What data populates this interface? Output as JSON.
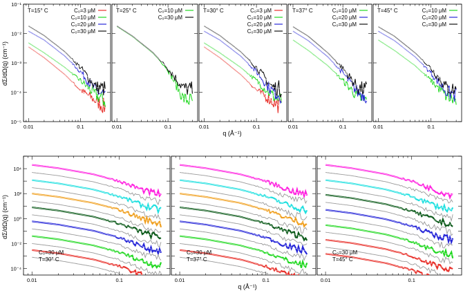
{
  "top_row": {
    "ylabel": "dΣ/dΩ(q) (cm⁻¹)",
    "xlabel": "q (Å⁻¹)"
  },
  "bottom_row": {
    "ylabel": "dΣ/dΩ(q) (cm⁻¹)",
    "xlabel": "q (Å⁻¹)"
  },
  "chart_data": [
    {
      "type": "line",
      "log_x": true,
      "log_y": true,
      "xlim": [
        0.008,
        0.38
      ],
      "ylim": [
        1e-05,
        0.1
      ],
      "x_ticks": [
        "0.01",
        "0.1"
      ],
      "y_ticks": [
        "10⁻⁵",
        "10⁻⁴",
        "10⁻³",
        "10⁻²",
        "10⁻¹"
      ],
      "temp": "T=15° C",
      "series": [
        {
          "name": "C₀=3 μM",
          "color": "#e8302a",
          "values": [
            [
              0.01,
              0.0035
            ],
            [
              0.02,
              0.0015
            ],
            [
              0.05,
              0.0004
            ],
            [
              0.1,
              0.00012
            ],
            [
              0.2,
              5e-05
            ],
            [
              0.3,
              3e-05
            ]
          ]
        },
        {
          "name": "C₀=10 μM",
          "color": "#22d822",
          "values": [
            [
              0.01,
              0.0048
            ],
            [
              0.02,
              0.0022
            ],
            [
              0.05,
              0.0007
            ],
            [
              0.1,
              0.00025
            ],
            [
              0.2,
              8e-05
            ],
            [
              0.3,
              5e-05
            ]
          ]
        },
        {
          "name": "C₀=20 μM",
          "color": "#2828d8",
          "values": [
            [
              0.01,
              0.012
            ],
            [
              0.02,
              0.006
            ],
            [
              0.05,
              0.0017
            ],
            [
              0.1,
              0.0005
            ],
            [
              0.2,
              0.00011
            ],
            [
              0.3,
              8e-05
            ]
          ]
        },
        {
          "name": "C₀=30 μM",
          "color": "#111111",
          "values": [
            [
              0.01,
              0.018
            ],
            [
              0.02,
              0.0085
            ],
            [
              0.05,
              0.0024
            ],
            [
              0.1,
              0.0007
            ],
            [
              0.2,
              0.00015
            ],
            [
              0.3,
              0.00013
            ]
          ]
        }
      ]
    },
    {
      "type": "line",
      "log_x": true,
      "log_y": true,
      "xlim": [
        0.008,
        0.38
      ],
      "ylim": [
        1e-05,
        0.1
      ],
      "x_ticks": [
        "0.01",
        "0.1"
      ],
      "temp": "T=25° C",
      "series": [
        {
          "name": "C₀=10 μM",
          "color": "#22d822",
          "values": [
            [
              0.01,
              0.0175
            ],
            [
              0.02,
              0.008
            ],
            [
              0.05,
              0.0022
            ],
            [
              0.1,
              0.0006
            ],
            [
              0.2,
              6e-05
            ],
            [
              0.3,
              5e-05
            ]
          ]
        },
        {
          "name": "C₀=30 μM",
          "color": "#111111",
          "values": [
            [
              0.01,
              0.018
            ],
            [
              0.02,
              0.0083
            ],
            [
              0.05,
              0.0023
            ],
            [
              0.1,
              0.00065
            ],
            [
              0.2,
              0.00014
            ],
            [
              0.3,
              0.00012
            ]
          ]
        }
      ]
    },
    {
      "type": "line",
      "log_x": true,
      "log_y": true,
      "xlim": [
        0.008,
        0.38
      ],
      "ylim": [
        1e-05,
        0.1
      ],
      "x_ticks": [
        "0.01",
        "0.1"
      ],
      "temp": "T=30° C",
      "series": [
        {
          "name": "C₀=3 μM",
          "color": "#e8302a",
          "values": [
            [
              0.01,
              0.0035
            ],
            [
              0.02,
              0.0015
            ],
            [
              0.05,
              0.0004
            ],
            [
              0.1,
              0.00012
            ],
            [
              0.2,
              5e-05
            ],
            [
              0.3,
              3e-05
            ]
          ]
        },
        {
          "name": "C₀=10 μM",
          "color": "#22d822",
          "values": [
            [
              0.01,
              0.0048
            ],
            [
              0.02,
              0.0022
            ],
            [
              0.05,
              0.0007
            ],
            [
              0.1,
              0.00025
            ],
            [
              0.2,
              8e-05
            ],
            [
              0.3,
              5e-05
            ]
          ]
        },
        {
          "name": "C₀=20 μM",
          "color": "#2828d8",
          "values": [
            [
              0.01,
              0.012
            ],
            [
              0.02,
              0.006
            ],
            [
              0.05,
              0.0017
            ],
            [
              0.1,
              0.0005
            ],
            [
              0.2,
              0.00011
            ],
            [
              0.3,
              8e-05
            ]
          ]
        },
        {
          "name": "C₀=30 μM",
          "color": "#111111",
          "values": [
            [
              0.01,
              0.018
            ],
            [
              0.02,
              0.0085
            ],
            [
              0.05,
              0.0024
            ],
            [
              0.1,
              0.0007
            ],
            [
              0.2,
              0.00015
            ],
            [
              0.3,
              0.00013
            ]
          ]
        }
      ]
    },
    {
      "type": "line",
      "log_x": true,
      "log_y": true,
      "xlim": [
        0.008,
        0.38
      ],
      "ylim": [
        1e-05,
        0.1
      ],
      "x_ticks": [
        "0.01",
        "0.1"
      ],
      "temp": "T=37° C",
      "series": [
        {
          "name": "C₀=10 μM",
          "color": "#22d822",
          "values": [
            [
              0.01,
              0.006
            ],
            [
              0.02,
              0.0027
            ],
            [
              0.05,
              0.0008
            ],
            [
              0.1,
              0.00025
            ],
            [
              0.2,
              7e-05
            ],
            [
              0.3,
              5e-05
            ]
          ]
        },
        {
          "name": "C₀=20 μM",
          "color": "#2828d8",
          "values": [
            [
              0.01,
              0.012
            ],
            [
              0.02,
              0.0058
            ],
            [
              0.05,
              0.0016
            ],
            [
              0.1,
              0.00045
            ],
            [
              0.2,
              0.0001
            ],
            [
              0.3,
              8e-05
            ]
          ]
        },
        {
          "name": "C₀=30 μM",
          "color": "#111111",
          "values": [
            [
              0.01,
              0.017
            ],
            [
              0.02,
              0.0082
            ],
            [
              0.05,
              0.0022
            ],
            [
              0.1,
              0.00065
            ],
            [
              0.2,
              0.00014
            ],
            [
              0.3,
              0.00012
            ]
          ]
        }
      ]
    },
    {
      "type": "line",
      "log_x": true,
      "log_y": true,
      "xlim": [
        0.008,
        0.38
      ],
      "ylim": [
        1e-05,
        0.1
      ],
      "x_ticks": [
        "0.01",
        "0.1"
      ],
      "temp": "T=45° C",
      "series": [
        {
          "name": "C₀=10 μM",
          "color": "#22d822",
          "values": [
            [
              0.01,
              0.006
            ],
            [
              0.02,
              0.0027
            ],
            [
              0.05,
              0.0008
            ],
            [
              0.1,
              0.00025
            ],
            [
              0.2,
              7e-05
            ],
            [
              0.3,
              5e-05
            ]
          ]
        },
        {
          "name": "C₀=20 μM",
          "color": "#2828d8",
          "values": [
            [
              0.01,
              0.012
            ],
            [
              0.02,
              0.0058
            ],
            [
              0.05,
              0.0016
            ],
            [
              0.1,
              0.00045
            ],
            [
              0.2,
              0.0001
            ],
            [
              0.3,
              8e-05
            ]
          ]
        },
        {
          "name": "C₀=30 μM",
          "color": "#111111",
          "values": [
            [
              0.01,
              0.017
            ],
            [
              0.02,
              0.0082
            ],
            [
              0.05,
              0.0022
            ],
            [
              0.1,
              0.00065
            ],
            [
              0.2,
              0.00014
            ],
            [
              0.3,
              0.00012
            ]
          ]
        }
      ]
    },
    {
      "type": "line",
      "log_x": true,
      "log_y": true,
      "xlim": [
        0.008,
        0.38
      ],
      "ylim": [
        3e-05,
        100000
      ],
      "x_ticks": [
        "0.01",
        "0.1"
      ],
      "y_ticks": [
        "10⁻⁴",
        "10⁻²",
        "10⁰",
        "10²",
        "10⁴"
      ],
      "conc": "C₀=30 μM",
      "temp": "T=30° C",
      "offsets": [
        {
          "color": "#ff22e0",
          "y0": 20000
        },
        {
          "color": "#999999",
          "y0": 5000
        },
        {
          "color": "#22e0e0",
          "y0": 1200
        },
        {
          "color": "#999999",
          "y0": 300
        },
        {
          "color": "#f0a020",
          "y0": 100
        },
        {
          "color": "#999999",
          "y0": 25
        },
        {
          "color": "#0c5a1a",
          "y0": 8
        },
        {
          "color": "#999999",
          "y0": 2
        },
        {
          "color": "#2828d8",
          "y0": 0.6
        },
        {
          "color": "#999999",
          "y0": 0.15
        },
        {
          "color": "#22d822",
          "y0": 0.04
        },
        {
          "color": "#999999",
          "y0": 0.01
        },
        {
          "color": "#e8302a",
          "y0": 0.003
        },
        {
          "color": "#999999",
          "y0": 0.0008
        }
      ]
    },
    {
      "type": "line",
      "log_x": true,
      "log_y": true,
      "xlim": [
        0.008,
        0.38
      ],
      "ylim": [
        3e-05,
        100000
      ],
      "x_ticks": [
        "0.01",
        "0.1"
      ],
      "conc": "C₀=30 μM",
      "temp": "T=37° C",
      "offsets": [
        {
          "color": "#ff22e0",
          "y0": 20000
        },
        {
          "color": "#999999",
          "y0": 5000
        },
        {
          "color": "#22e0e0",
          "y0": 1200
        },
        {
          "color": "#999999",
          "y0": 300
        },
        {
          "color": "#f0a020",
          "y0": 100
        },
        {
          "color": "#999999",
          "y0": 25
        },
        {
          "color": "#0c5a1a",
          "y0": 8
        },
        {
          "color": "#999999",
          "y0": 2
        },
        {
          "color": "#2828d8",
          "y0": 0.6
        },
        {
          "color": "#999999",
          "y0": 0.15
        },
        {
          "color": "#22d822",
          "y0": 0.04
        },
        {
          "color": "#999999",
          "y0": 0.01
        },
        {
          "color": "#e8302a",
          "y0": 0.003
        },
        {
          "color": "#999999",
          "y0": 0.0008
        }
      ]
    },
    {
      "type": "line",
      "log_x": true,
      "log_y": true,
      "xlim": [
        0.008,
        0.38
      ],
      "ylim": [
        3e-05,
        100000
      ],
      "x_ticks": [
        "0.01",
        "0.1"
      ],
      "conc": "C₀=30 μM",
      "temp": "T=45° C",
      "offsets": [
        {
          "color": "#ff22e0",
          "y0": 20000
        },
        {
          "color": "#999999",
          "y0": 5000
        },
        {
          "color": "#22e0e0",
          "y0": 1200
        },
        {
          "color": "#999999",
          "y0": 300
        },
        {
          "color": "#0c5a1a",
          "y0": 80
        },
        {
          "color": "#999999",
          "y0": 20
        },
        {
          "color": "#2828d8",
          "y0": 5
        },
        {
          "color": "#999999",
          "y0": 1.2
        },
        {
          "color": "#22d822",
          "y0": 0.3
        },
        {
          "color": "#999999",
          "y0": 0.08
        },
        {
          "color": "#e8302a",
          "y0": 0.02
        },
        {
          "color": "#999999",
          "y0": 0.005
        },
        {
          "color": "#e8302a",
          "y0": 0.0015
        }
      ]
    }
  ]
}
